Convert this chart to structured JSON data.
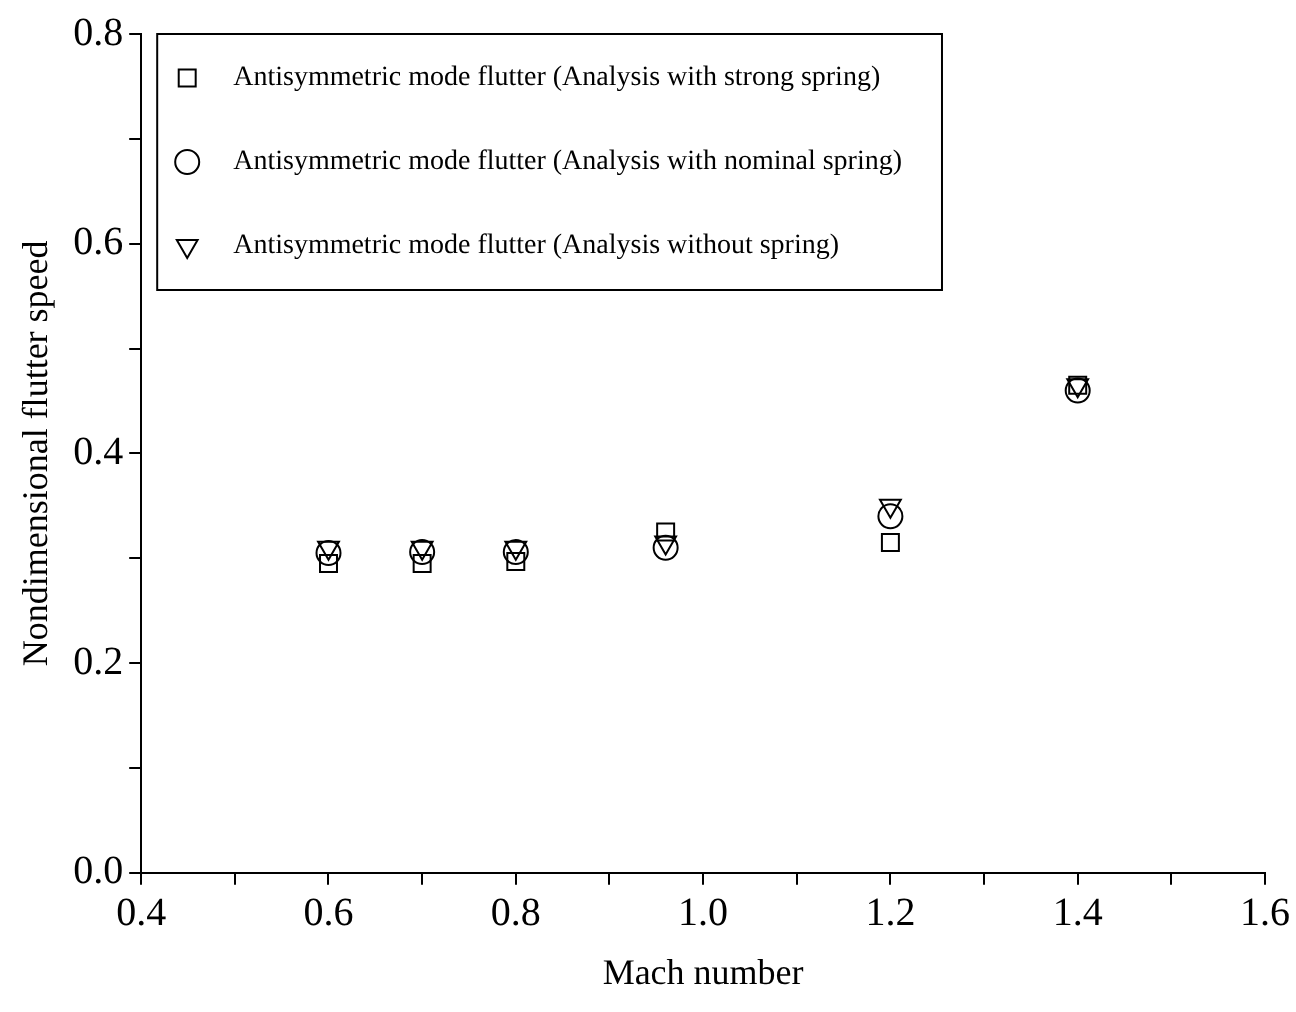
{
  "chart_data": {
    "type": "scatter",
    "xlabel": "Mach number",
    "ylabel": "Nondimensional flutter speed",
    "xlim": [
      0.4,
      1.6
    ],
    "xticks": [
      0.4,
      {
        "value": 0.5,
        "label": null
      },
      0.6,
      {
        "value": 0.7,
        "label": null
      },
      0.8,
      {
        "value": 0.9,
        "label": null
      },
      {
        "value": 1,
        "label": "1.0"
      },
      {
        "value": 1.1,
        "label": null
      },
      1.2,
      {
        "value": 1.3,
        "label": null
      },
      1.4,
      {
        "value": 1.5,
        "label": null
      },
      1.6
    ],
    "ylim": [
      0,
      0.8
    ],
    "yticks": [
      {
        "value": 0,
        "label": "0.0"
      },
      {
        "value": 0.1,
        "label": null
      },
      0.2,
      {
        "value": 0.3,
        "label": null
      },
      0.4,
      {
        "value": 0.5,
        "label": null
      },
      0.6,
      {
        "value": 0.7,
        "label": null
      },
      0.8
    ],
    "grid": false,
    "legend": "top",
    "x": [
      0.6,
      0.7,
      0.8,
      0.96,
      1.2,
      1.4
    ],
    "series": [
      {
        "name": "Antisymmetric mode flutter (Analysis with strong spring)",
        "color": "#000000",
        "marker": "square",
        "values": [
          0.295,
          0.295,
          0.297,
          0.325,
          0.315,
          0.465
        ]
      },
      {
        "name": "Antisymmetric mode flutter (Analysis with nominal spring)",
        "color": "#000000",
        "marker": "circle",
        "values": [
          0.305,
          0.306,
          0.306,
          0.31,
          0.34,
          0.46
        ]
      },
      {
        "name": "Antisymmetric mode flutter (Analysis without spring)",
        "color": "#000000",
        "marker": "triangle",
        "values": [
          0.31,
          0.31,
          0.31,
          0.315,
          0.35,
          0.465
        ]
      }
    ]
  }
}
